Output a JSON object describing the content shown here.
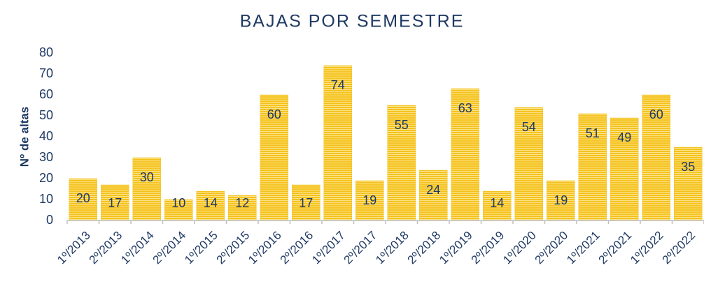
{
  "chart_data": {
    "type": "bar",
    "title": "BAJAS POR SEMESTRE",
    "y_label": "Nº de altas",
    "categories": [
      "1º/2013",
      "2º/2013",
      "1º/2014",
      "2º/2014",
      "1º/2015",
      "2º/2015",
      "1º/2016",
      "2º/2016",
      "1º/2017",
      "2º/2017",
      "1º/2018",
      "2º/2018",
      "1º/2019",
      "2º/2019",
      "1º/2020",
      "2º/2020",
      "1º/2021",
      "2º/2021",
      "1º/2022",
      "2º/2022"
    ],
    "values": [
      20,
      17,
      30,
      10,
      14,
      12,
      60,
      17,
      74,
      19,
      55,
      24,
      63,
      14,
      54,
      19,
      51,
      49,
      60,
      35
    ],
    "color": "#f5c320",
    "ylim": [
      0,
      80
    ],
    "yticks": [
      0,
      10,
      20,
      30,
      40,
      50,
      60,
      70,
      80
    ],
    "grid": false
  }
}
